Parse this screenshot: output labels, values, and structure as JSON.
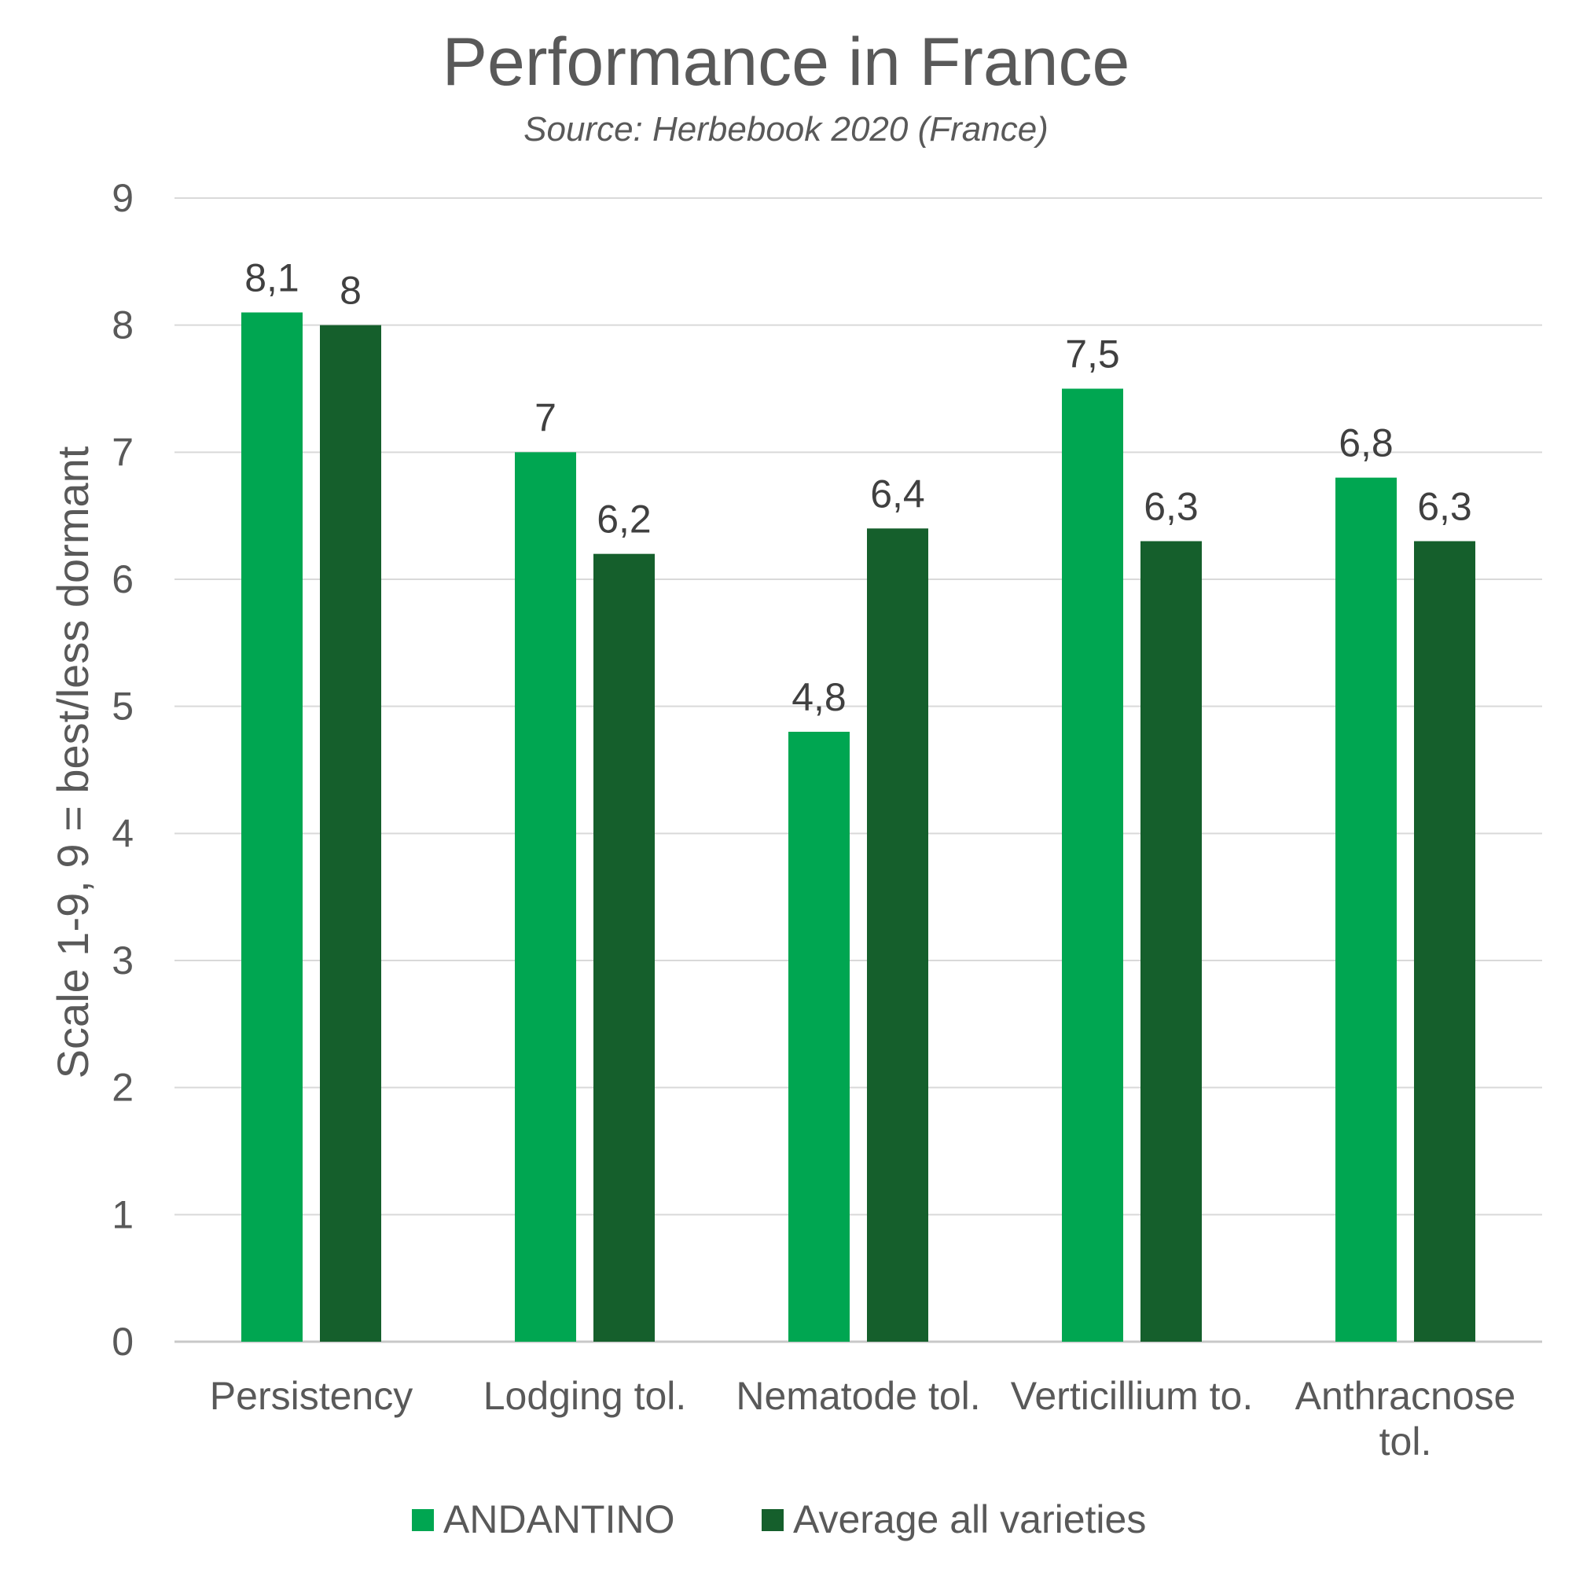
{
  "chart_data": {
    "type": "bar",
    "title": "Performance in France",
    "subtitle": "Source: Herbebook 2020 (France)",
    "ylabel": "Scale 1-9, 9 = best/less dormant",
    "xlabel": "",
    "ylim": [
      0,
      9
    ],
    "yticks": [
      "0",
      "1",
      "2",
      "3",
      "4",
      "5",
      "6",
      "7",
      "8",
      "9"
    ],
    "categories": [
      [
        "Persistency"
      ],
      [
        "Lodging tol."
      ],
      [
        "Nematode tol."
      ],
      [
        "Verticillium to."
      ],
      [
        "Anthracnose",
        "tol."
      ]
    ],
    "series": [
      {
        "name": "ANDANTINO",
        "color": "#00A651",
        "values": [
          8.1,
          7,
          4.8,
          7.5,
          6.8
        ],
        "labels": [
          "8,1",
          "7",
          "4,8",
          "7,5",
          "6,8"
        ]
      },
      {
        "name": "Average all varieties",
        "color": "#155F2C",
        "values": [
          8,
          6.2,
          6.4,
          6.3,
          6.3
        ],
        "labels": [
          "8",
          "6,2",
          "6,4",
          "6,3",
          "6,3"
        ]
      }
    ],
    "grid": true,
    "legend_position": "bottom",
    "data_labels": true
  }
}
